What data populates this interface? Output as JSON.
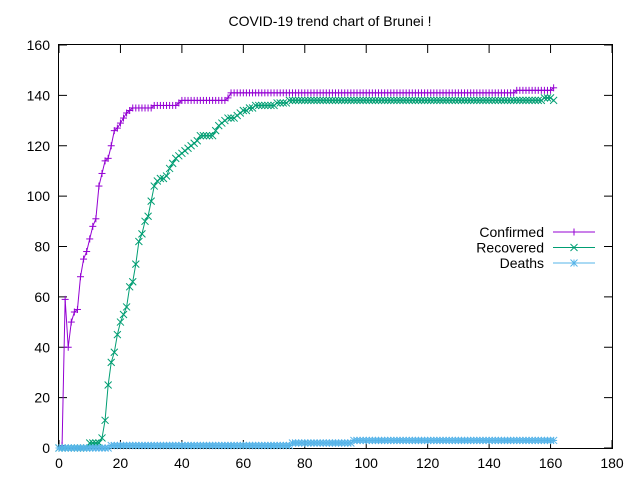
{
  "chart_data": {
    "type": "line",
    "title": "COVID-19 trend chart of Brunei !",
    "xlabel": "",
    "ylabel": "",
    "xlim": [
      0,
      180
    ],
    "ylim": [
      0,
      160
    ],
    "xticks": [
      "0",
      "20",
      "40",
      "60",
      "80",
      "100",
      "120",
      "140",
      "160",
      "180"
    ],
    "yticks": [
      "0",
      "20",
      "40",
      "60",
      "80",
      "100",
      "120",
      "140",
      "160"
    ],
    "grid": false,
    "legend": "right",
    "series": [
      {
        "name": "Confirmed",
        "color": "#9400d3",
        "marker": "plus",
        "points": [
          [
            0,
            0
          ],
          [
            1,
            1
          ],
          [
            2,
            59
          ],
          [
            3,
            40
          ],
          [
            4,
            50
          ],
          [
            5,
            54
          ],
          [
            6,
            55
          ],
          [
            7,
            68
          ],
          [
            8,
            75
          ],
          [
            9,
            78
          ],
          [
            10,
            83
          ],
          [
            11,
            88
          ],
          [
            12,
            91
          ],
          [
            13,
            104
          ],
          [
            14,
            109
          ],
          [
            15,
            114
          ],
          [
            16,
            115
          ],
          [
            17,
            120
          ],
          [
            18,
            126
          ],
          [
            19,
            127
          ],
          [
            20,
            129
          ],
          [
            21,
            131
          ],
          [
            22,
            133
          ],
          [
            23,
            134
          ],
          [
            24,
            135
          ],
          [
            25,
            135
          ],
          [
            26,
            135
          ],
          [
            27,
            135
          ],
          [
            28,
            135
          ],
          [
            29,
            135
          ],
          [
            30,
            135
          ],
          [
            31,
            136
          ],
          [
            32,
            136
          ],
          [
            33,
            136
          ],
          [
            34,
            136
          ],
          [
            35,
            136
          ],
          [
            36,
            136
          ],
          [
            37,
            136
          ],
          [
            38,
            136
          ],
          [
            39,
            137
          ],
          [
            40,
            138
          ],
          [
            45,
            138
          ],
          [
            50,
            138
          ],
          [
            54,
            138
          ],
          [
            55,
            139
          ],
          [
            56,
            141
          ],
          [
            60,
            141
          ],
          [
            70,
            141
          ],
          [
            80,
            141
          ],
          [
            90,
            141
          ],
          [
            100,
            141
          ],
          [
            110,
            141
          ],
          [
            120,
            141
          ],
          [
            130,
            141
          ],
          [
            140,
            141
          ],
          [
            148,
            141
          ],
          [
            149,
            142
          ],
          [
            155,
            142
          ],
          [
            160,
            142
          ],
          [
            161,
            143
          ]
        ]
      },
      {
        "name": "Recovered",
        "color": "#009e73",
        "marker": "cross",
        "points": [
          [
            0,
            0
          ],
          [
            5,
            0
          ],
          [
            9,
            0
          ],
          [
            10,
            2
          ],
          [
            11,
            2
          ],
          [
            12,
            2
          ],
          [
            13,
            2
          ],
          [
            14,
            4
          ],
          [
            15,
            11
          ],
          [
            16,
            25
          ],
          [
            17,
            34
          ],
          [
            18,
            38
          ],
          [
            19,
            45
          ],
          [
            20,
            50
          ],
          [
            21,
            53
          ],
          [
            22,
            56
          ],
          [
            23,
            64
          ],
          [
            24,
            66
          ],
          [
            25,
            73
          ],
          [
            26,
            82
          ],
          [
            27,
            85
          ],
          [
            28,
            90
          ],
          [
            29,
            92
          ],
          [
            30,
            98
          ],
          [
            31,
            104
          ],
          [
            32,
            106
          ],
          [
            33,
            107
          ],
          [
            34,
            107
          ],
          [
            35,
            108
          ],
          [
            36,
            111
          ],
          [
            37,
            113
          ],
          [
            38,
            115
          ],
          [
            39,
            116
          ],
          [
            40,
            117
          ],
          [
            41,
            118
          ],
          [
            42,
            119
          ],
          [
            43,
            120
          ],
          [
            44,
            121
          ],
          [
            45,
            122
          ],
          [
            46,
            124
          ],
          [
            47,
            124
          ],
          [
            48,
            124
          ],
          [
            49,
            124
          ],
          [
            50,
            124
          ],
          [
            51,
            126
          ],
          [
            52,
            128
          ],
          [
            53,
            129
          ],
          [
            54,
            130
          ],
          [
            55,
            131
          ],
          [
            56,
            131
          ],
          [
            57,
            131
          ],
          [
            58,
            132
          ],
          [
            59,
            133
          ],
          [
            60,
            134
          ],
          [
            61,
            134
          ],
          [
            62,
            135
          ],
          [
            63,
            135
          ],
          [
            64,
            136
          ],
          [
            65,
            136
          ],
          [
            66,
            136
          ],
          [
            67,
            136
          ],
          [
            68,
            136
          ],
          [
            69,
            136
          ],
          [
            70,
            136
          ],
          [
            71,
            137
          ],
          [
            72,
            137
          ],
          [
            73,
            137
          ],
          [
            74,
            137
          ],
          [
            75,
            138
          ],
          [
            80,
            138
          ],
          [
            90,
            138
          ],
          [
            100,
            138
          ],
          [
            110,
            138
          ],
          [
            120,
            138
          ],
          [
            130,
            138
          ],
          [
            140,
            138
          ],
          [
            150,
            138
          ],
          [
            157,
            138
          ],
          [
            158,
            139
          ],
          [
            160,
            139
          ],
          [
            161,
            138
          ]
        ]
      },
      {
        "name": "Deaths",
        "color": "#56b4e9",
        "marker": "star",
        "points": [
          [
            0,
            0
          ],
          [
            16,
            0
          ],
          [
            17,
            1
          ],
          [
            30,
            1
          ],
          [
            50,
            1
          ],
          [
            70,
            1
          ],
          [
            75,
            1
          ],
          [
            76,
            2
          ],
          [
            90,
            2
          ],
          [
            95,
            2
          ],
          [
            96,
            3
          ],
          [
            110,
            3
          ],
          [
            130,
            3
          ],
          [
            150,
            3
          ],
          [
            161,
            3
          ]
        ]
      }
    ]
  }
}
